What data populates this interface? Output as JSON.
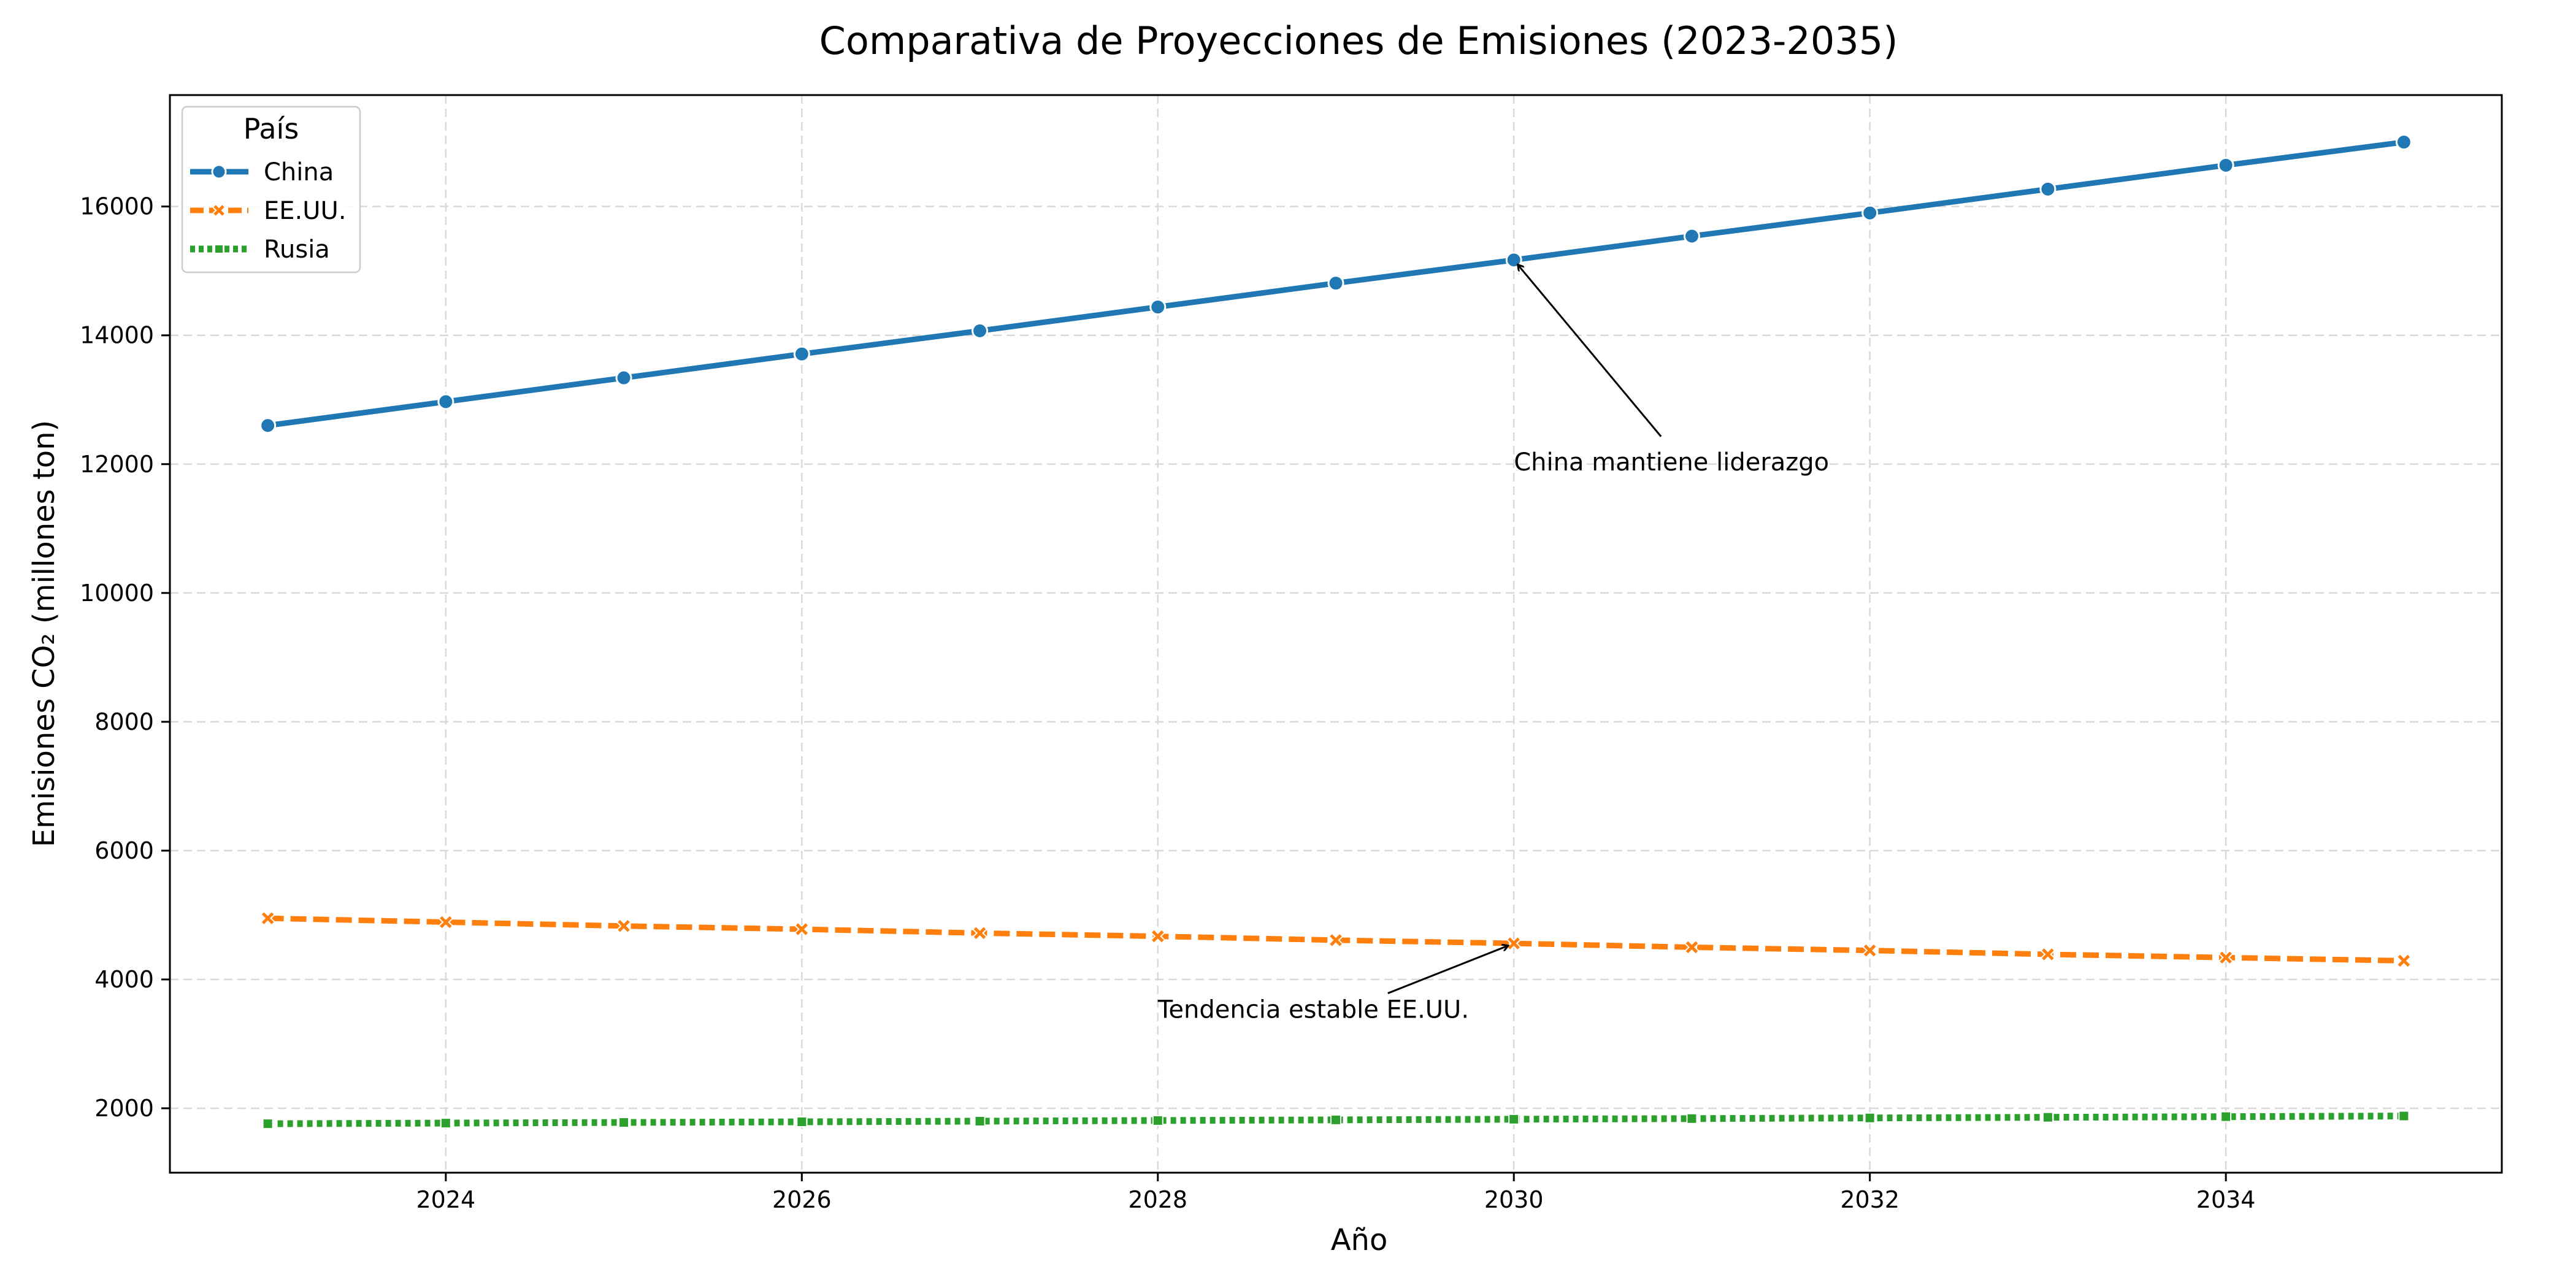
{
  "chart_data": {
    "type": "line",
    "title": "Comparativa de Proyecciones de Emisiones (2023-2035)",
    "xlabel": "Año",
    "ylabel": "Emisiones CO₂ (millones ton)",
    "xlim": [
      2022.45,
      2035.55
    ],
    "ylim": [
      1000,
      17730
    ],
    "grid": true,
    "legend_placement": "top-left",
    "legend_title": "País",
    "x": [
      2023,
      2024,
      2025,
      2026,
      2027,
      2028,
      2029,
      2030,
      2031,
      2032,
      2033,
      2034,
      2035
    ],
    "x_ticks": [
      2024,
      2026,
      2028,
      2030,
      2032,
      2034
    ],
    "y_ticks": [
      2000,
      4000,
      6000,
      8000,
      10000,
      12000,
      14000,
      16000
    ],
    "series": [
      {
        "name": "China",
        "color": "#1f77b4",
        "dash": "solid",
        "marker": "circle",
        "values": [
          12600,
          12970,
          13340,
          13710,
          14070,
          14440,
          14810,
          15170,
          15540,
          15900,
          16270,
          16640,
          17000
        ]
      },
      {
        "name": "EE.UU.",
        "color": "#ff7f0e",
        "dash": "dashed",
        "marker": "x",
        "values": [
          4950,
          4890,
          4830,
          4780,
          4720,
          4670,
          4610,
          4560,
          4500,
          4450,
          4390,
          4340,
          4290
        ]
      },
      {
        "name": "Rusia",
        "color": "#2ca02c",
        "dash": "dotted",
        "marker": "square",
        "values": [
          1760,
          1770,
          1780,
          1790,
          1800,
          1810,
          1820,
          1830,
          1840,
          1850,
          1860,
          1870,
          1880
        ]
      }
    ],
    "annotations": [
      {
        "text": "China mantiene liderazgo",
        "point": [
          2030,
          15170
        ],
        "text_pos": [
          2030,
          12000
        ]
      },
      {
        "text": "Tendencia estable EE.UU.",
        "point": [
          2030,
          4560
        ],
        "text_pos": [
          2028,
          3500
        ]
      }
    ]
  }
}
